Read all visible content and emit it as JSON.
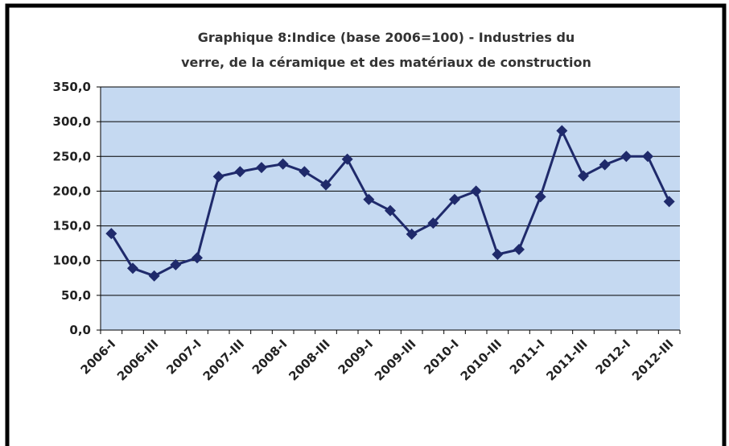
{
  "chart_data": {
    "type": "line",
    "title": [
      "Graphique 8:Indice (base 2006=100) - Industries du",
      "verre, de la céramique et des matériaux de construction"
    ],
    "categories": [
      "2006-I",
      null,
      "2006-III",
      null,
      "2007-I",
      null,
      "2007-III",
      null,
      "2008-I",
      null,
      "2008-III",
      null,
      "2009-I",
      null,
      "2009-III",
      null,
      "2010-I",
      null,
      "2010-III",
      null,
      "2011-I",
      null,
      "2011-III",
      null,
      "2012-I",
      null,
      "2012-III"
    ],
    "series": [
      {
        "color": "#1f2a6b",
        "values": [
          139,
          89,
          78,
          94,
          104,
          221,
          228,
          234,
          239,
          228,
          209,
          246,
          188,
          172,
          138,
          154,
          188,
          200,
          109,
          116,
          192,
          287,
          222,
          238,
          250,
          250,
          185
        ]
      }
    ],
    "ylim": [
      0,
      350
    ],
    "yticks": [
      {
        "value": 0,
        "label": "0,0"
      },
      {
        "value": 50,
        "label": "50,0"
      },
      {
        "value": 100,
        "label": "100,0"
      },
      {
        "value": 150,
        "label": "150,0"
      },
      {
        "value": 200,
        "label": "200,0"
      },
      {
        "value": 250,
        "label": "250,0"
      },
      {
        "value": 300,
        "label": "300,0"
      },
      {
        "value": 350,
        "label": "350,0"
      }
    ],
    "grid": true,
    "background": "#c5d9f1"
  }
}
